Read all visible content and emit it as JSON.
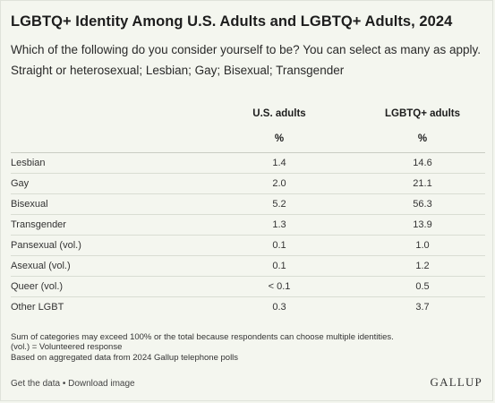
{
  "title": "LGBTQ+ Identity Among U.S. Adults and LGBTQ+ Adults, 2024",
  "subtitle_line1": "Which of the following do you consider yourself to be? You can select as many as apply.",
  "subtitle_line2": "Straight or heterosexual; Lesbian; Gay; Bisexual; Transgender",
  "chart_data": {
    "type": "table",
    "columns": [
      "U.S. adults",
      "LGBTQ+ adults"
    ],
    "unit": "%",
    "rows": [
      {
        "label": "Lesbian",
        "values": [
          "1.4",
          "14.6"
        ]
      },
      {
        "label": "Gay",
        "values": [
          "2.0",
          "21.1"
        ]
      },
      {
        "label": "Bisexual",
        "values": [
          "5.2",
          "56.3"
        ]
      },
      {
        "label": "Transgender",
        "values": [
          "1.3",
          "13.9"
        ]
      },
      {
        "label": "Pansexual (vol.)",
        "values": [
          "0.1",
          "1.0"
        ]
      },
      {
        "label": "Asexual (vol.)",
        "values": [
          "0.1",
          "1.2"
        ]
      },
      {
        "label": "Queer (vol.)",
        "values": [
          "< 0.1",
          "0.5"
        ]
      },
      {
        "label": "Other LGBT",
        "values": [
          "0.3",
          "3.7"
        ]
      }
    ]
  },
  "notes": [
    "Sum of categories may exceed 100% or the total because respondents can choose multiple identities.",
    "(vol.) = Volunteered response",
    "Based on aggregated data from 2024 Gallup telephone polls"
  ],
  "footer": {
    "get_data": "Get the data",
    "separator": " • ",
    "download": "Download image"
  },
  "brand": "GALLUP"
}
